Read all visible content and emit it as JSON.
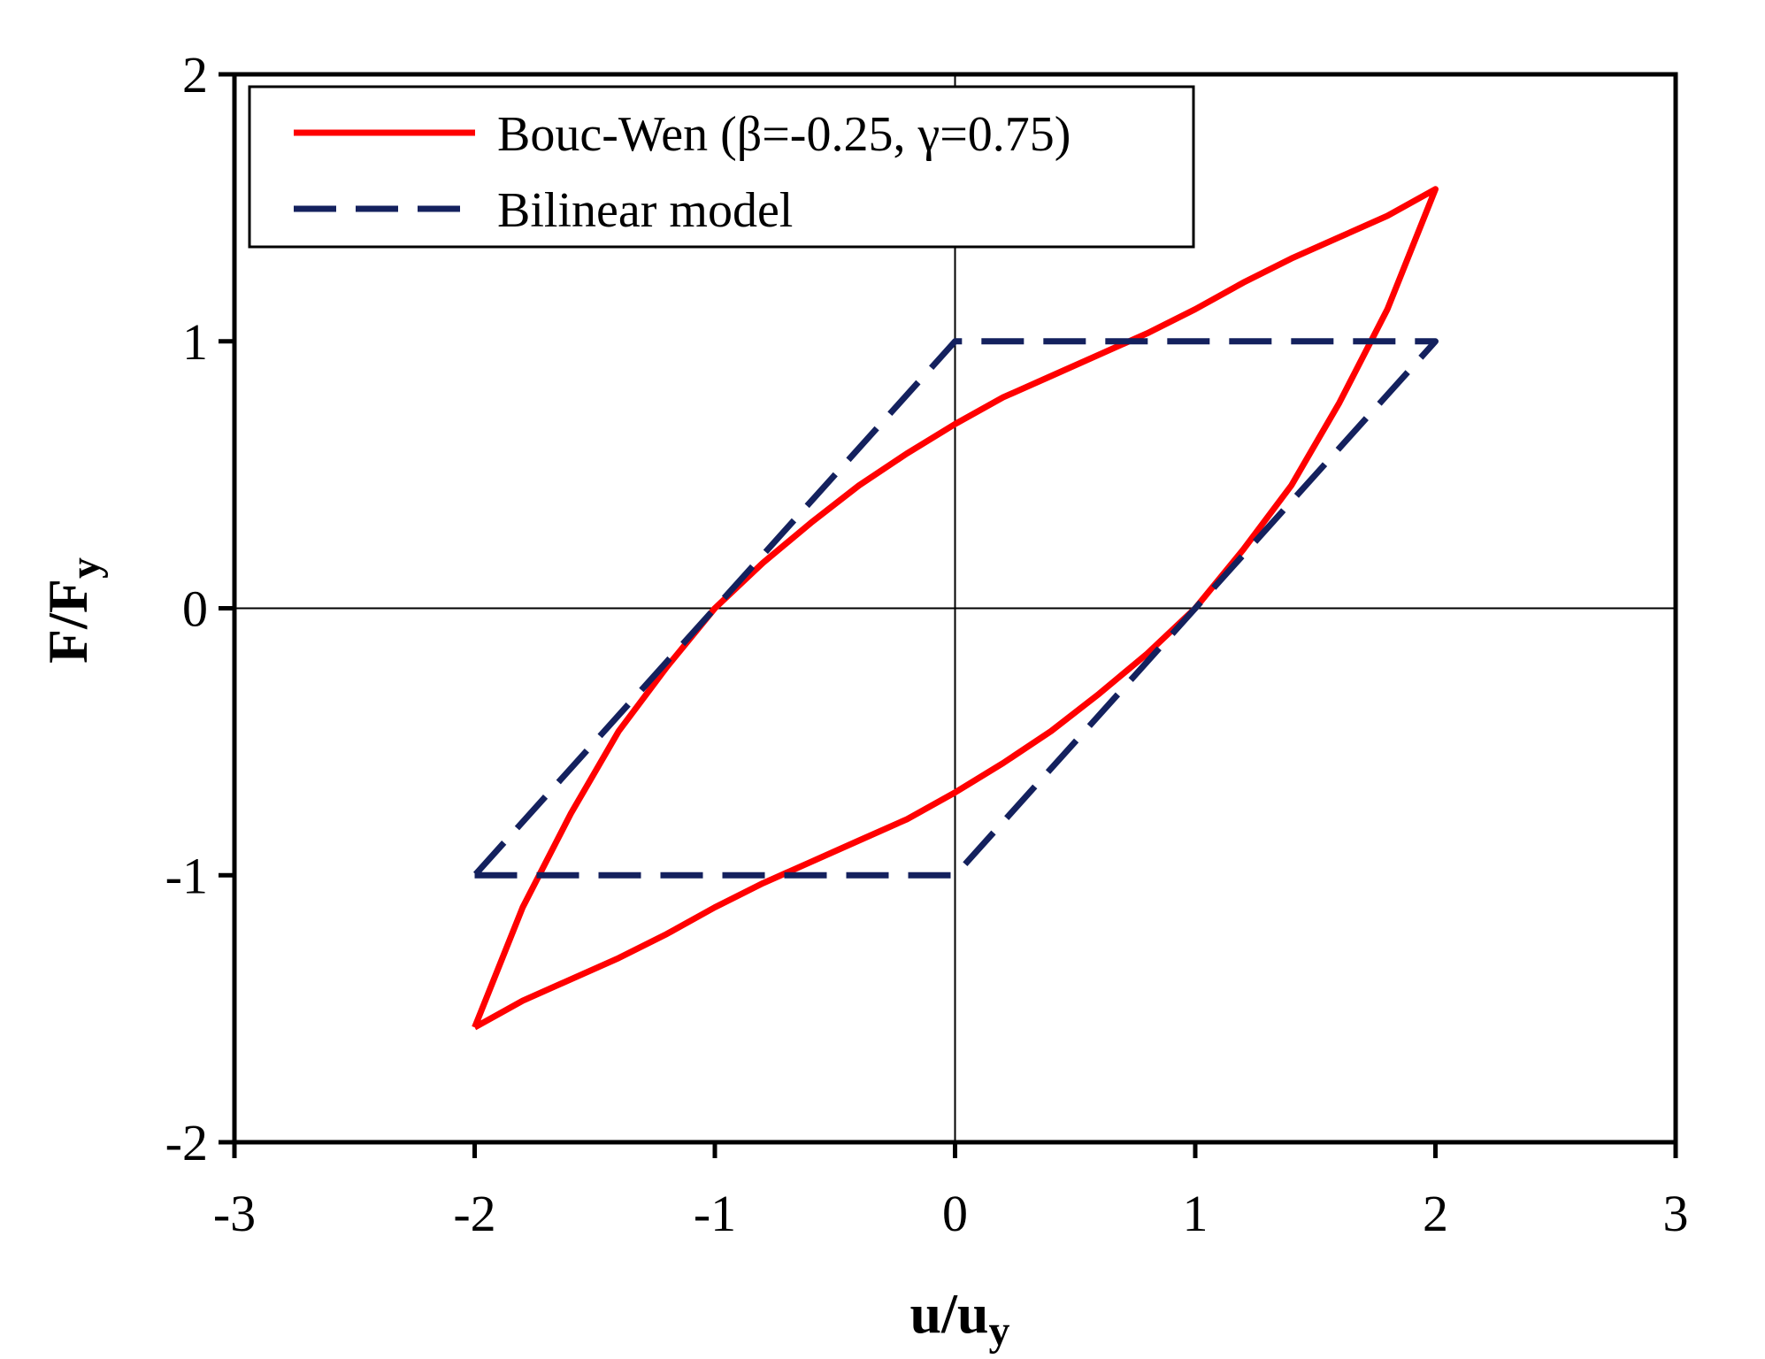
{
  "chart_data": {
    "type": "line",
    "xlabel": "u/u",
    "xlabel_sub": "y",
    "ylabel": "F/F",
    "ylabel_sub": "y",
    "xlim": [
      -3,
      3
    ],
    "ylim": [
      -2,
      2
    ],
    "xticks": [
      -3,
      -2,
      -1,
      0,
      1,
      2,
      3
    ],
    "yticks": [
      -2,
      -1,
      0,
      1,
      2
    ],
    "xtick_labels": [
      "-3",
      "-2",
      "-1",
      "0",
      "1",
      "2",
      "3"
    ],
    "ytick_labels": [
      "-2",
      "-1",
      "0",
      "1",
      "2"
    ],
    "grid": false,
    "zero_lines": true,
    "legend_position": "top-left",
    "series": [
      {
        "name": "Bouc-Wen (β=-0.25, γ=0.75)",
        "color": "#ff0000",
        "style": "solid",
        "points": [
          [
            -2.0,
            -1.57
          ],
          [
            -1.8,
            -1.47
          ],
          [
            -1.6,
            -1.39
          ],
          [
            -1.4,
            -1.31
          ],
          [
            -1.2,
            -1.22
          ],
          [
            -1.0,
            -1.12
          ],
          [
            -0.8,
            -1.03
          ],
          [
            -0.6,
            -0.95
          ],
          [
            -0.4,
            -0.87
          ],
          [
            -0.2,
            -0.79
          ],
          [
            0.0,
            -0.69
          ],
          [
            0.2,
            -0.58
          ],
          [
            0.4,
            -0.46
          ],
          [
            0.6,
            -0.32
          ],
          [
            0.8,
            -0.17
          ],
          [
            1.0,
            0.0
          ],
          [
            1.2,
            0.22
          ],
          [
            1.4,
            0.46
          ],
          [
            1.6,
            0.77
          ],
          [
            1.8,
            1.12
          ],
          [
            2.0,
            1.57
          ],
          [
            1.8,
            1.47
          ],
          [
            1.6,
            1.39
          ],
          [
            1.4,
            1.31
          ],
          [
            1.2,
            1.22
          ],
          [
            1.0,
            1.12
          ],
          [
            0.8,
            1.03
          ],
          [
            0.6,
            0.95
          ],
          [
            0.4,
            0.87
          ],
          [
            0.2,
            0.79
          ],
          [
            0.0,
            0.69
          ],
          [
            -0.2,
            0.58
          ],
          [
            -0.4,
            0.46
          ],
          [
            -0.6,
            0.32
          ],
          [
            -0.8,
            0.17
          ],
          [
            -1.0,
            0.0
          ],
          [
            -1.2,
            -0.22
          ],
          [
            -1.4,
            -0.46
          ],
          [
            -1.6,
            -0.77
          ],
          [
            -1.8,
            -1.12
          ],
          [
            -2.0,
            -1.57
          ]
        ]
      },
      {
        "name": "Bilinear model",
        "color": "#14215e",
        "style": "dashed",
        "points": [
          [
            -2.0,
            -1.0
          ],
          [
            0.0,
            -1.0
          ],
          [
            2.0,
            1.0
          ],
          [
            0.0,
            1.0
          ],
          [
            -2.0,
            -1.0
          ]
        ]
      }
    ]
  }
}
